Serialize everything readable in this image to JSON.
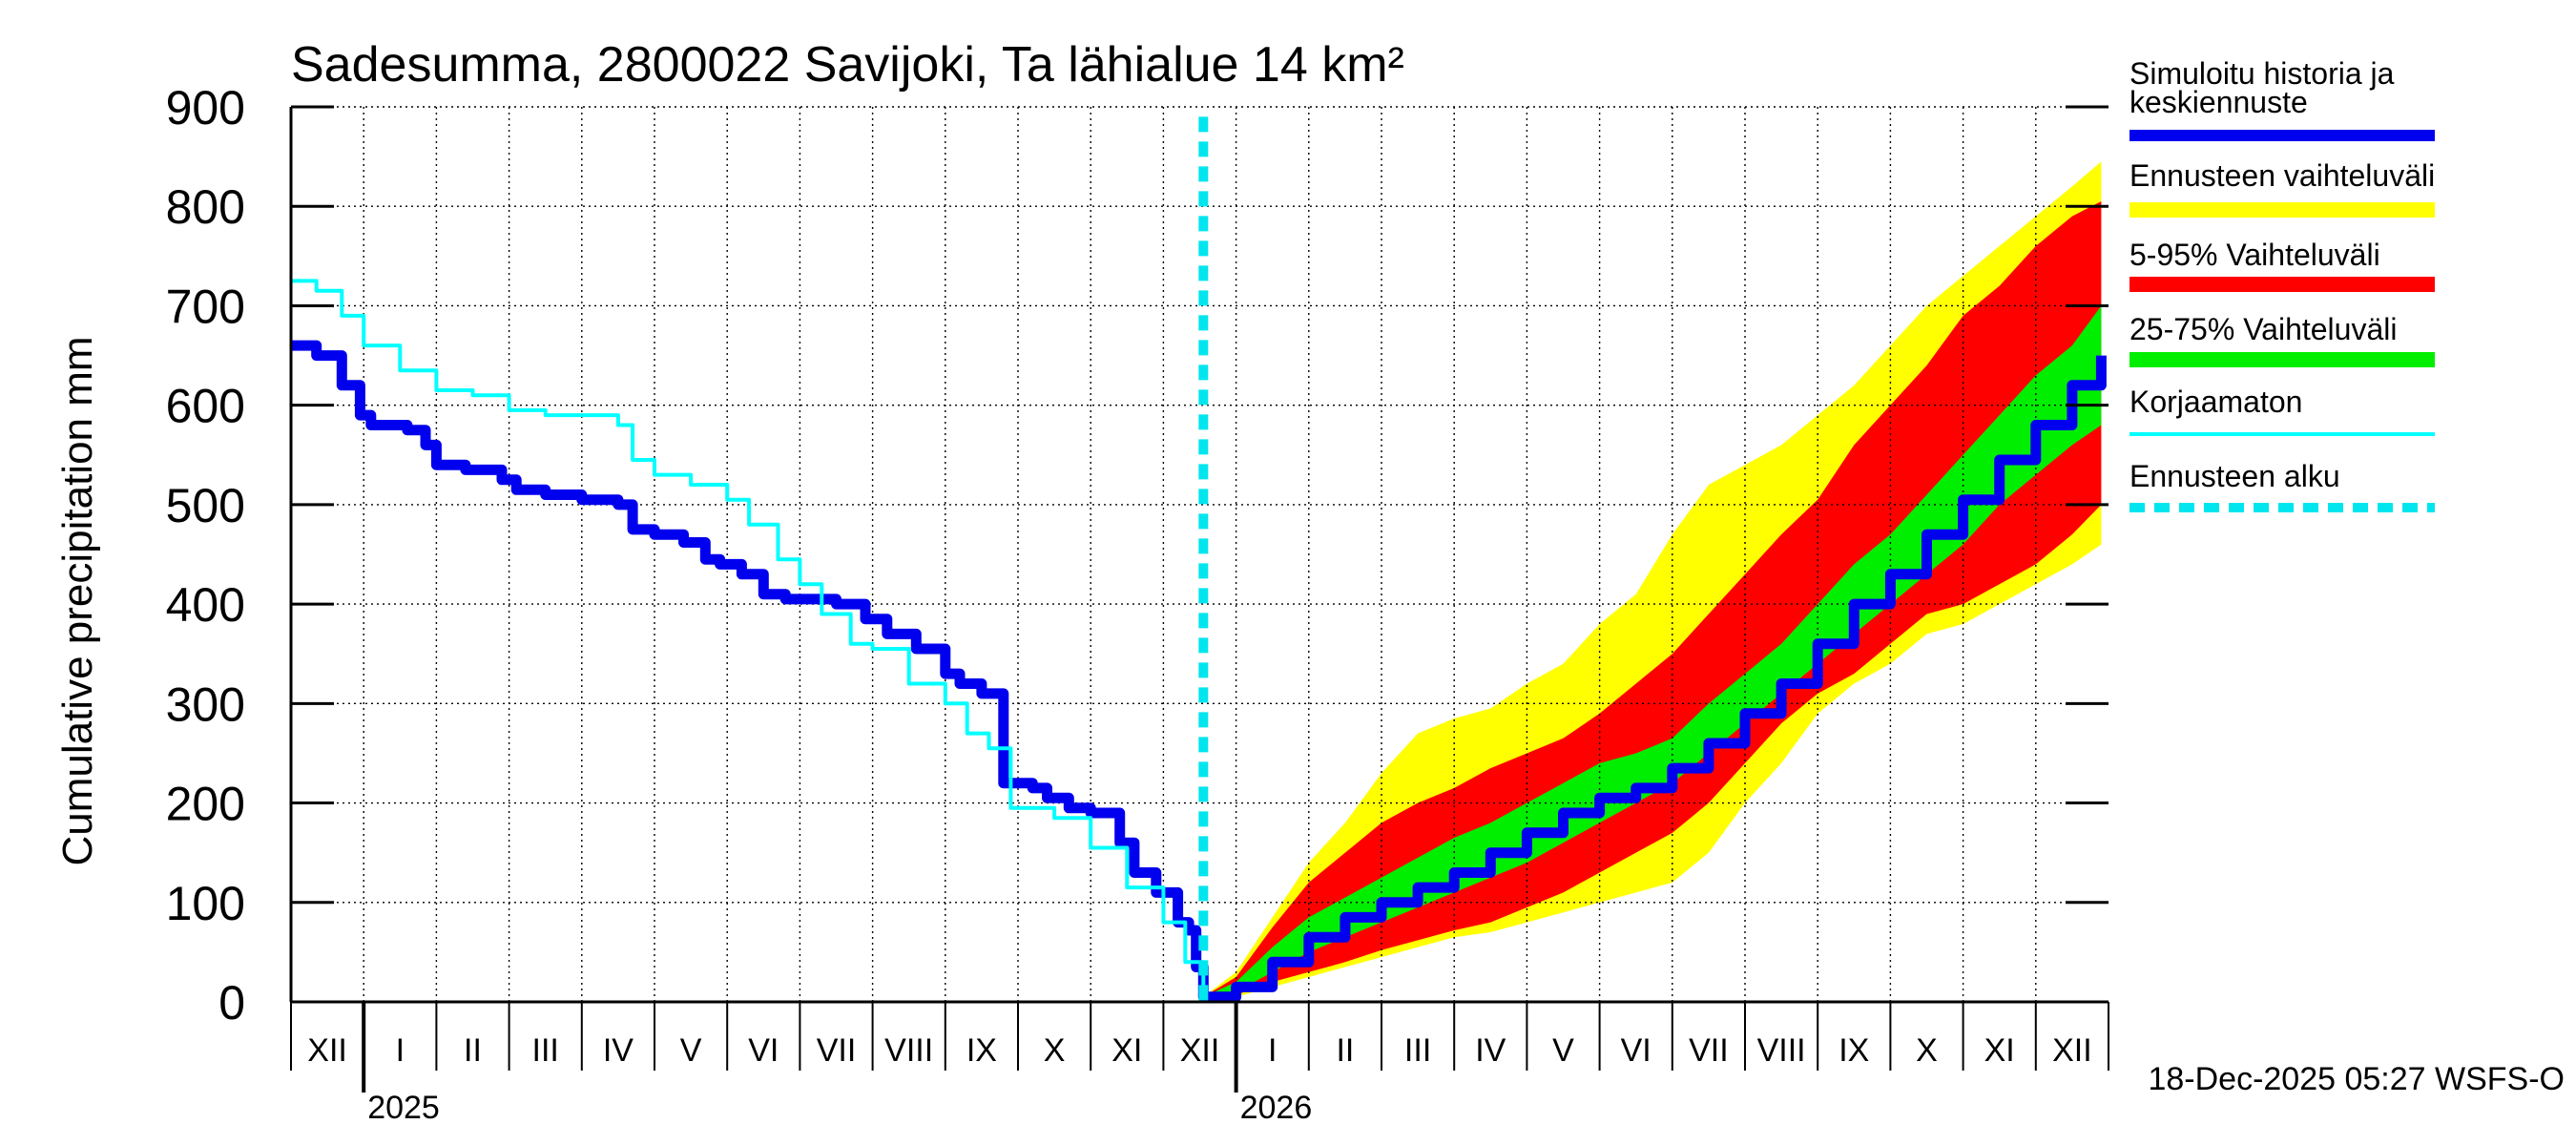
{
  "chart_data": {
    "type": "area",
    "title": "Sadesumma, 2800022 Savijoki, Ta lähialue 14 km²",
    "ylabel": "Cumulative precipitation   mm",
    "xlabel": "",
    "ylim": [
      0,
      900
    ],
    "yticks": [
      0,
      100,
      200,
      300,
      400,
      500,
      600,
      700,
      800,
      900
    ],
    "x_unit": "months since start of December 2024",
    "xlim": [
      0,
      25
    ],
    "month_labels": [
      "XII",
      "I",
      "II",
      "III",
      "IV",
      "V",
      "VI",
      "VII",
      "VIII",
      "IX",
      "X",
      "XI",
      "XII",
      "I",
      "II",
      "III",
      "IV",
      "V",
      "VI",
      "VII",
      "VIII",
      "IX",
      "X",
      "XI",
      "XII"
    ],
    "year_labels": [
      {
        "text": "2025",
        "month_index": 1
      },
      {
        "text": "2026",
        "month_index": 13
      }
    ],
    "forecast_start": 12.55,
    "grid": true,
    "legend_position": "right",
    "legend": [
      {
        "label": "Simuloitu historia ja keskiennuste",
        "color": "#0000ee",
        "style": "solid-thick"
      },
      {
        "label": "Ennusteen vaihteluväli",
        "color": "#ffff00",
        "style": "band"
      },
      {
        "label": "5-95% Vaihteluväli",
        "color": "#ff0000",
        "style": "band"
      },
      {
        "label": "25-75% Vaihteluväli",
        "color": "#00ee00",
        "style": "band"
      },
      {
        "label": "Korjaamaton",
        "color": "#00ffff",
        "style": "solid-thin"
      },
      {
        "label": "Ennusteen alku",
        "color": "#00e5ee",
        "style": "dashed"
      }
    ],
    "series": [
      {
        "name": "Simuloitu historia ja keskiennuste",
        "color": "#0000ee",
        "x": [
          0,
          0.35,
          0.7,
          0.95,
          1.1,
          1.6,
          1.85,
          2.0,
          2.4,
          2.9,
          3.1,
          3.5,
          4.0,
          4.5,
          4.7,
          5.0,
          5.4,
          5.7,
          5.9,
          6.2,
          6.5,
          6.8,
          7.5,
          7.9,
          8.2,
          8.6,
          9.0,
          9.2,
          9.5,
          9.8,
          10.2,
          10.4,
          10.7,
          11.0,
          11.4,
          11.6,
          11.9,
          12.2,
          12.35,
          12.45,
          12.55,
          13.0,
          13.5,
          14.0,
          14.5,
          15.0,
          15.5,
          16.0,
          16.5,
          17.0,
          17.5,
          18.0,
          18.5,
          19.0,
          19.5,
          20.0,
          20.5,
          21.0,
          21.5,
          22.0,
          22.5,
          23.0,
          23.5,
          24.0,
          24.5,
          24.9
        ],
        "values": [
          660,
          650,
          620,
          590,
          580,
          575,
          560,
          540,
          535,
          525,
          515,
          510,
          505,
          500,
          475,
          470,
          462,
          445,
          440,
          430,
          410,
          405,
          400,
          385,
          370,
          355,
          330,
          320,
          310,
          220,
          215,
          205,
          195,
          190,
          160,
          130,
          110,
          80,
          72,
          35,
          5,
          15,
          40,
          65,
          85,
          100,
          115,
          130,
          150,
          170,
          190,
          205,
          215,
          235,
          260,
          290,
          320,
          360,
          400,
          430,
          470,
          505,
          545,
          580,
          620,
          650
        ]
      },
      {
        "name": "Korjaamaton",
        "color": "#00ffff",
        "x": [
          0,
          0.35,
          0.7,
          1.0,
          1.5,
          2.0,
          2.5,
          3.0,
          3.5,
          4.0,
          4.5,
          4.7,
          5.0,
          5.5,
          6.0,
          6.3,
          6.7,
          7.0,
          7.3,
          7.7,
          8.0,
          8.5,
          9.0,
          9.3,
          9.6,
          9.9,
          10.5,
          11.0,
          11.5,
          12.0,
          12.3,
          12.55
        ],
        "values": [
          725,
          715,
          690,
          660,
          635,
          615,
          610,
          595,
          590,
          590,
          580,
          545,
          530,
          520,
          505,
          480,
          445,
          420,
          390,
          360,
          355,
          320,
          300,
          270,
          255,
          195,
          185,
          155,
          115,
          80,
          40,
          5
        ]
      }
    ],
    "bands": [
      {
        "name": "Ennusteen vaihteluväli",
        "color": "#ffff00",
        "x": [
          12.55,
          13.0,
          13.5,
          14.0,
          14.5,
          15.0,
          15.5,
          16.0,
          16.5,
          17.0,
          17.5,
          18.0,
          18.5,
          19.0,
          19.5,
          20.0,
          20.5,
          21.0,
          21.5,
          22.0,
          22.5,
          23.0,
          23.5,
          24.0,
          24.5,
          24.9
        ],
        "low": [
          0,
          5,
          15,
          25,
          35,
          45,
          55,
          65,
          70,
          80,
          90,
          100,
          110,
          120,
          150,
          200,
          240,
          290,
          320,
          340,
          370,
          380,
          400,
          420,
          440,
          460
        ],
        "high": [
          5,
          30,
          85,
          140,
          180,
          230,
          270,
          285,
          295,
          320,
          340,
          380,
          410,
          470,
          520,
          540,
          560,
          590,
          620,
          660,
          700,
          730,
          760,
          790,
          820,
          845
        ]
      },
      {
        "name": "5-95% Vaihteluväli",
        "color": "#ff0000",
        "x": [
          12.55,
          13.0,
          13.5,
          14.0,
          14.5,
          15.0,
          15.5,
          16.0,
          16.5,
          17.0,
          17.5,
          18.0,
          18.5,
          19.0,
          19.5,
          20.0,
          20.5,
          21.0,
          21.5,
          22.0,
          22.5,
          23.0,
          23.5,
          24.0,
          24.5,
          24.9
        ],
        "low": [
          0,
          7,
          20,
          30,
          40,
          52,
          62,
          72,
          80,
          95,
          110,
          130,
          150,
          170,
          200,
          240,
          280,
          310,
          330,
          360,
          390,
          400,
          420,
          440,
          470,
          500
        ],
        "high": [
          5,
          25,
          75,
          120,
          150,
          180,
          200,
          215,
          235,
          250,
          265,
          290,
          320,
          350,
          390,
          430,
          470,
          505,
          560,
          600,
          640,
          690,
          720,
          760,
          790,
          805
        ]
      },
      {
        "name": "25-75% Vaihteluväli",
        "color": "#00ee00",
        "x": [
          12.55,
          13.0,
          13.5,
          14.0,
          14.5,
          15.0,
          15.5,
          16.0,
          16.5,
          17.0,
          17.5,
          18.0,
          18.5,
          19.0,
          19.5,
          20.0,
          20.5,
          21.0,
          21.5,
          22.0,
          22.5,
          23.0,
          23.5,
          24.0,
          24.5,
          24.9
        ],
        "low": [
          0,
          10,
          30,
          50,
          65,
          80,
          95,
          110,
          125,
          140,
          160,
          180,
          200,
          220,
          250,
          280,
          310,
          340,
          370,
          400,
          430,
          460,
          500,
          530,
          560,
          580
        ],
        "high": [
          5,
          20,
          55,
          85,
          105,
          125,
          145,
          165,
          180,
          200,
          220,
          240,
          250,
          265,
          300,
          330,
          360,
          400,
          440,
          470,
          510,
          550,
          590,
          630,
          660,
          700
        ]
      }
    ]
  },
  "footer": {
    "timestamp": "18-Dec-2025 05:27 WSFS-O"
  }
}
